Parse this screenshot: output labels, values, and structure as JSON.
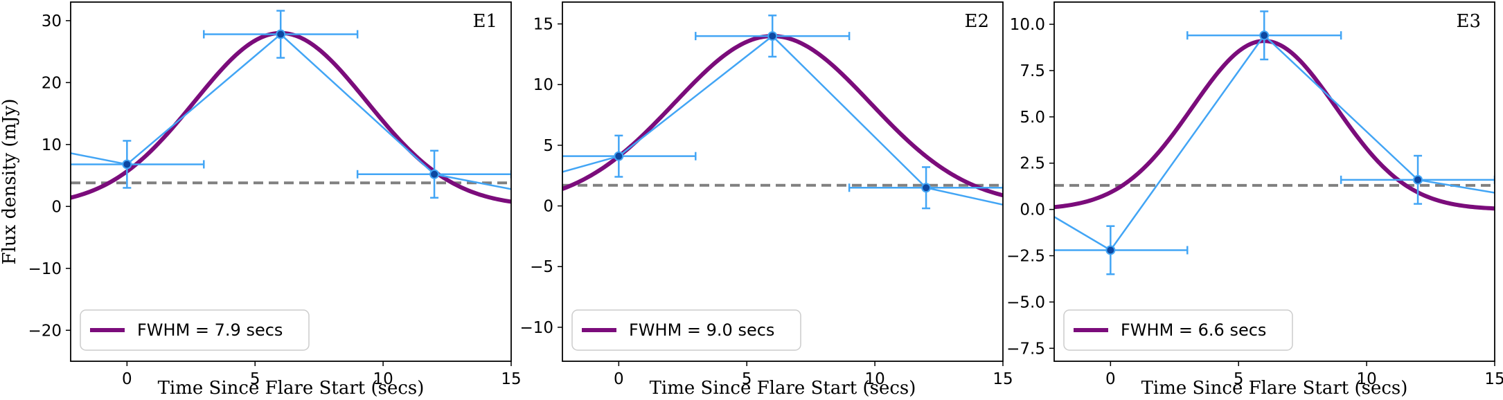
{
  "chart_data": [
    {
      "type": "line",
      "panel_label": "E1",
      "xlabel": "Time Since Flare Start (secs)",
      "ylabel": "Flux density (mJy)",
      "xlim": [
        -2.2,
        15
      ],
      "ylim": [
        -25,
        33
      ],
      "xticks": [
        0,
        5,
        10,
        15
      ],
      "yticks": [
        -20,
        -10,
        0,
        10,
        20,
        30
      ],
      "ytick_labels": [
        "−20",
        "−10",
        "0",
        "10",
        "20",
        "30"
      ],
      "baseline": 3.8,
      "gaussian": {
        "amplitude": 28.0,
        "center": 6.0,
        "fwhm": 7.9,
        "offset": 0
      },
      "legend": "FWHM = 7.9 secs",
      "points": [
        {
          "x": 0,
          "y": 6.8,
          "xerr": 3.0,
          "yerr": 3.8
        },
        {
          "x": 6,
          "y": 27.8,
          "xerr": 3.0,
          "yerr": 3.8
        },
        {
          "x": 12,
          "y": 5.2,
          "xerr": 3.0,
          "yerr": 3.8
        }
      ],
      "line_ends": [
        8.6,
        2.8
      ]
    },
    {
      "type": "line",
      "panel_label": "E2",
      "xlabel": "Time Since Flare Start (secs)",
      "ylabel": "",
      "xlim": [
        -2.2,
        15
      ],
      "ylim": [
        -12.8,
        16.8
      ],
      "xticks": [
        0,
        5,
        10,
        15
      ],
      "yticks": [
        -10,
        -5,
        0,
        5,
        10,
        15
      ],
      "ytick_labels": [
        "−10",
        "−5",
        "0",
        "5",
        "10",
        "15"
      ],
      "baseline": 1.7,
      "gaussian": {
        "amplitude": 14.0,
        "center": 6.0,
        "fwhm": 9.0,
        "offset": 0
      },
      "legend": "FWHM = 9.0 secs",
      "points": [
        {
          "x": 0,
          "y": 4.1,
          "xerr": 3.0,
          "yerr": 1.7
        },
        {
          "x": 6,
          "y": 14.0,
          "xerr": 3.0,
          "yerr": 1.7
        },
        {
          "x": 12,
          "y": 1.5,
          "xerr": 3.0,
          "yerr": 1.7
        }
      ],
      "line_ends": [
        2.8,
        0.1
      ]
    },
    {
      "type": "line",
      "panel_label": "E3",
      "xlabel": "Time Since Flare Start (secs)",
      "ylabel": "",
      "xlim": [
        -2.2,
        15
      ],
      "ylim": [
        -8.2,
        11.2
      ],
      "xticks": [
        0,
        5,
        10,
        15
      ],
      "yticks": [
        -7.5,
        -5.0,
        -2.5,
        0.0,
        2.5,
        5.0,
        7.5,
        10.0
      ],
      "ytick_labels": [
        "−7.5",
        "−5.0",
        "−2.5",
        "0.0",
        "2.5",
        "5.0",
        "7.5",
        "10.0"
      ],
      "baseline": 1.3,
      "gaussian": {
        "amplitude": 9.1,
        "center": 6.0,
        "fwhm": 6.6,
        "offset": 0
      },
      "legend": "FWHM = 6.6 secs",
      "points": [
        {
          "x": 0,
          "y": -2.2,
          "xerr": 3.0,
          "yerr": 1.3
        },
        {
          "x": 6,
          "y": 9.4,
          "xerr": 3.0,
          "yerr": 1.3
        },
        {
          "x": 12,
          "y": 1.6,
          "xerr": 3.0,
          "yerr": 1.3
        }
      ],
      "line_ends": [
        -0.4,
        0.9
      ]
    }
  ],
  "colors": {
    "data": "#42a5f5",
    "marker": "#0d47a1",
    "fit": "#7b0c7b",
    "baseline": "#808080",
    "axis": "#000000"
  }
}
